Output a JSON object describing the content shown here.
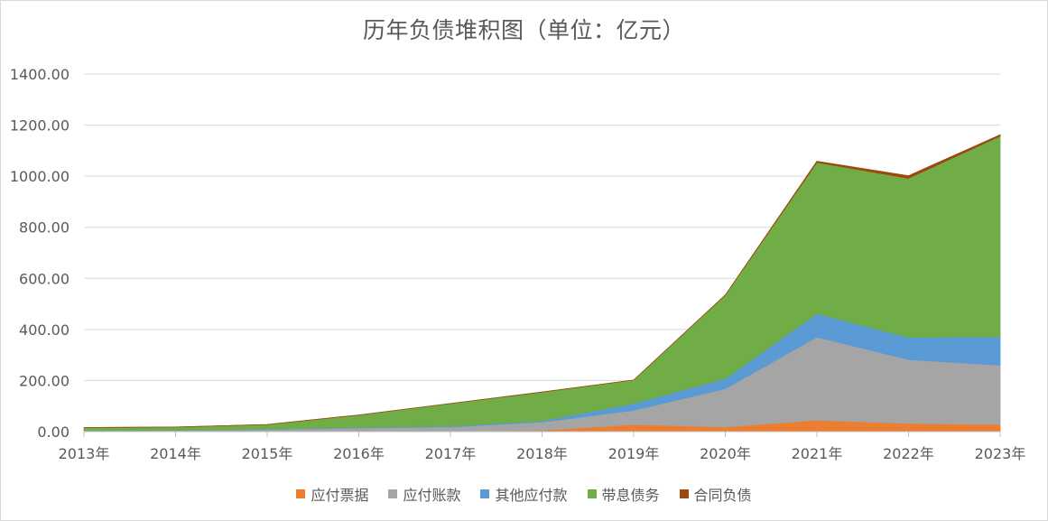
{
  "chart_data": {
    "type": "area",
    "stacked": true,
    "title": "历年负债堆积图（单位：亿元）",
    "categories": [
      "2013年",
      "2014年",
      "2015年",
      "2016年",
      "2017年",
      "2018年",
      "2019年",
      "2020年",
      "2021年",
      "2022年",
      "2023年"
    ],
    "ylim": [
      0,
      1400
    ],
    "yticks": [
      "0.00",
      "200.00",
      "400.00",
      "600.00",
      "800.00",
      "1000.00",
      "1200.00",
      "1400.00"
    ],
    "grid": true,
    "legend_position": "bottom",
    "series": [
      {
        "name": "应付票据",
        "color": "#ED7D31",
        "values": [
          0,
          0,
          0,
          0,
          2,
          5,
          28,
          18,
          45,
          32,
          28
        ]
      },
      {
        "name": "应付账款",
        "color": "#A5A5A5",
        "values": [
          4,
          5,
          8,
          14,
          16,
          32,
          55,
          150,
          325,
          250,
          232
        ]
      },
      {
        "name": "其他应付款",
        "color": "#5B9BD5",
        "values": [
          1,
          1,
          2,
          3,
          4,
          5,
          27,
          40,
          92,
          87,
          112
        ]
      },
      {
        "name": "带息债务",
        "color": "#70AD47",
        "values": [
          11,
          12,
          18,
          48,
          88,
          113,
          92,
          327,
          592,
          623,
          785
        ]
      },
      {
        "name": "合同负债",
        "color": "#9E480E",
        "values": [
          0,
          0,
          0,
          0,
          0,
          0,
          0,
          0,
          5,
          10,
          5
        ]
      }
    ]
  }
}
